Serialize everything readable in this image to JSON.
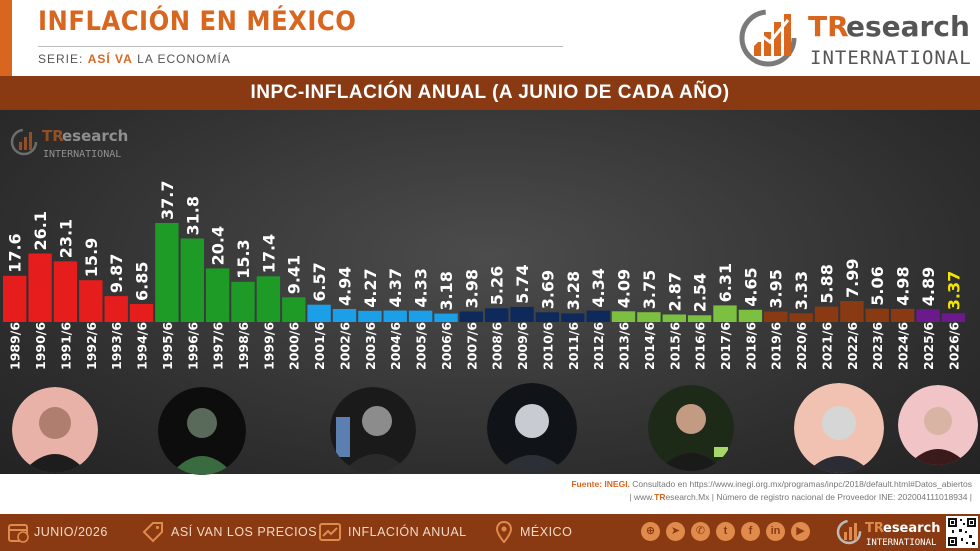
{
  "header": {
    "title": "INFLACIÓN EN MÉXICO",
    "subtitle_prefix": "SERIE: ",
    "subtitle_highlight": "ASÍ VA",
    "subtitle_suffix": " LA ECONOMÍA"
  },
  "brand": {
    "name_tr": "TR",
    "name_rest": "esearch",
    "tagline": "INTERNATIONAL"
  },
  "colors": {
    "brand_orange": "#d9661f",
    "band_brown": "#8a3a12"
  },
  "chart_data": {
    "type": "bar",
    "title": "INPC-INFLACIÓN ANUAL (A JUNIO DE CADA AÑO)",
    "xlabel": "",
    "ylabel": "",
    "ylim": [
      0,
      40
    ],
    "grid": false,
    "categories": [
      "1989/6",
      "1990/6",
      "1991/6",
      "1992/6",
      "1993/6",
      "1994/6",
      "1995/6",
      "1996/6",
      "1997/6",
      "1998/6",
      "1999/6",
      "2000/6",
      "2001/6",
      "2002/6",
      "2003/6",
      "2004/6",
      "2005/6",
      "2006/6",
      "2007/6",
      "2008/6",
      "2009/6",
      "2010/6",
      "2011/6",
      "2012/6",
      "2013/6",
      "2014/6",
      "2015/6",
      "2016/6",
      "2017/6",
      "2018/6",
      "2019/6",
      "2020/6",
      "2021/6",
      "2022/6",
      "2023/6",
      "2024/6",
      "2025/6",
      "2026/6"
    ],
    "values": [
      17.6,
      26.1,
      23.1,
      15.9,
      9.87,
      6.85,
      37.7,
      31.8,
      20.4,
      15.3,
      17.4,
      9.41,
      6.57,
      4.94,
      4.27,
      4.37,
      4.33,
      3.18,
      3.98,
      5.26,
      5.74,
      3.69,
      3.28,
      4.34,
      4.09,
      3.75,
      2.87,
      2.54,
      6.31,
      4.65,
      3.95,
      3.33,
      5.88,
      7.99,
      5.06,
      4.98,
      4.89,
      3.37
    ],
    "labels": [
      "17.6",
      "26.1",
      "23.1",
      "15.9",
      "9.87",
      "6.85",
      "37.7",
      "31.8",
      "20.4",
      "15.3",
      "17.4",
      "9.41",
      "6.57",
      "4.94",
      "4.27",
      "4.37",
      "4.33",
      "3.18",
      "3.98",
      "5.26",
      "5.74",
      "3.69",
      "3.28",
      "4.34",
      "4.09",
      "3.75",
      "2.87",
      "2.54",
      "6.31",
      "4.65",
      "3.95",
      "3.33",
      "5.88",
      "7.99",
      "5.06",
      "4.98",
      "4.89",
      "3.37"
    ],
    "bar_colors": [
      "#e61d1d",
      "#e61d1d",
      "#e61d1d",
      "#e61d1d",
      "#e61d1d",
      "#e61d1d",
      "#1e9a27",
      "#1e9a27",
      "#1e9a27",
      "#1e9a27",
      "#1e9a27",
      "#1e9a27",
      "#1a9fe8",
      "#1a9fe8",
      "#1a9fe8",
      "#1a9fe8",
      "#1a9fe8",
      "#1a9fe8",
      "#0e2a5a",
      "#0e2a5a",
      "#0e2a5a",
      "#0e2a5a",
      "#0e2a5a",
      "#0e2a5a",
      "#7bc040",
      "#7bc040",
      "#7bc040",
      "#7bc040",
      "#7bc040",
      "#7bc040",
      "#8a3a12",
      "#8a3a12",
      "#8a3a12",
      "#8a3a12",
      "#8a3a12",
      "#8a3a12",
      "#6a1a8a",
      "#6a1a8a"
    ],
    "label_colors": [
      "#ffffff",
      "#ffffff",
      "#ffffff",
      "#ffffff",
      "#ffffff",
      "#ffffff",
      "#ffffff",
      "#ffffff",
      "#ffffff",
      "#ffffff",
      "#ffffff",
      "#ffffff",
      "#ffffff",
      "#ffffff",
      "#ffffff",
      "#ffffff",
      "#ffffff",
      "#ffffff",
      "#ffffff",
      "#ffffff",
      "#ffffff",
      "#ffffff",
      "#ffffff",
      "#ffffff",
      "#ffffff",
      "#ffffff",
      "#ffffff",
      "#ffffff",
      "#ffffff",
      "#ffffff",
      "#ffffff",
      "#ffffff",
      "#ffffff",
      "#ffffff",
      "#ffffff",
      "#ffffff",
      "#ffffff",
      "#f2e600"
    ]
  },
  "portraits": [
    {
      "icon": "portrait-1-icon",
      "bg": "#e9b2a8",
      "fg": "#1d1d1d"
    },
    {
      "icon": "portrait-2-icon",
      "bg": "#0d0d0d",
      "fg": "#3a6a40"
    },
    {
      "icon": "portrait-3-icon",
      "bg": "#1a1a1a",
      "fg": "#5b7fb0"
    },
    {
      "icon": "portrait-4-icon",
      "bg": "#101418",
      "fg": "#c8ccd2"
    },
    {
      "icon": "portrait-5-icon",
      "bg": "#1d2a18",
      "fg": "#a7d66a"
    },
    {
      "icon": "portrait-6-icon",
      "bg": "#f1c2b2",
      "fg": "#ffffff"
    },
    {
      "icon": "portrait-7-icon",
      "bg": "#f1c5c8",
      "fg": "#3a1a1a"
    }
  ],
  "source": {
    "label": "Fuente: INEGI.",
    "text": " Consultado en https://www.inegi.org.mx/programas/inpc/2018/default.html#Datos_abiertos",
    "site_prefix": "| www.",
    "site_tr": "TR",
    "site_rest": "esearch.Mx | Número de registro nacional de Proveedor INE: 202004111018934 |"
  },
  "footer": {
    "items": [
      {
        "label": "JUNIO/2026",
        "icon": "calendar-icon"
      },
      {
        "label": "ASÍ VAN LOS PRECIOS",
        "icon": "price-tag-icon"
      },
      {
        "label": "INFLACIÓN ANUAL",
        "icon": "trend-chart-icon"
      },
      {
        "label": "MÉXICO",
        "icon": "map-pin-icon"
      }
    ],
    "social": [
      {
        "icon": "globe-icon",
        "glyph": "⊕"
      },
      {
        "icon": "telegram-icon",
        "glyph": "➤"
      },
      {
        "icon": "whatsapp-icon",
        "glyph": "✆"
      },
      {
        "icon": "twitter-icon",
        "glyph": "t"
      },
      {
        "icon": "facebook-icon",
        "glyph": "f"
      },
      {
        "icon": "linkedin-icon",
        "glyph": "in"
      },
      {
        "icon": "youtube-icon",
        "glyph": "▶"
      }
    ],
    "logo_tr": "TR",
    "logo_rest": "esearch",
    "logo_tagline": "INTERNATIONAL"
  }
}
